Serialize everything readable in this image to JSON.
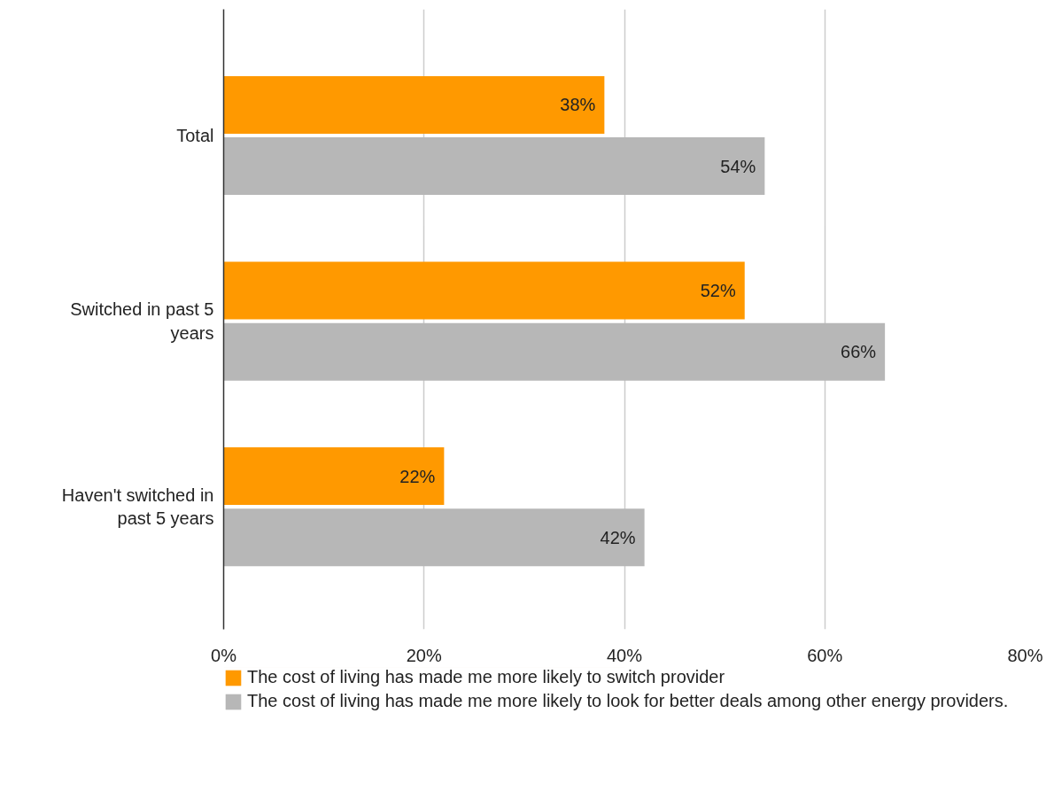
{
  "chart_data": {
    "type": "bar",
    "orientation": "horizontal",
    "categories": [
      "Total",
      "Switched in past 5 years",
      "Haven't switched in past 5 years"
    ],
    "series": [
      {
        "name": "The cost of living has made me more likely to switch provider",
        "color": "#ff9900",
        "values": [
          38,
          52,
          22
        ],
        "value_labels": [
          "38%",
          "52%",
          "22%"
        ]
      },
      {
        "name": "The cost of living has made me more likely to look for better deals among other energy providers.",
        "color": "#b7b7b7",
        "values": [
          54,
          66,
          42
        ],
        "value_labels": [
          "54%",
          "66%",
          "42%"
        ]
      }
    ],
    "xlim": [
      0,
      80
    ],
    "xticks": [
      {
        "value": 0,
        "label": "0%"
      },
      {
        "value": 20,
        "label": "20%"
      },
      {
        "value": 40,
        "label": "40%"
      },
      {
        "value": 60,
        "label": "60%"
      },
      {
        "value": 80,
        "label": "80%"
      }
    ],
    "grid": "x",
    "legend": "bottom"
  }
}
